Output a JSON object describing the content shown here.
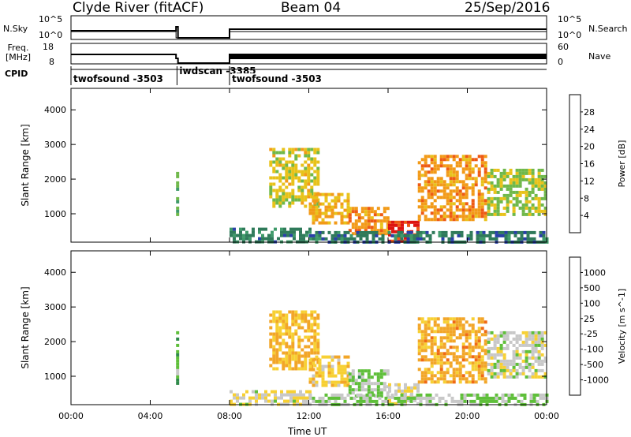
{
  "header": {
    "station": "Clyde River (fitACF)",
    "beam": "Beam 04",
    "date": "25/Sep/2016"
  },
  "strip_nsky": {
    "label": "N.Sky",
    "tick_top": "10^5",
    "tick_bottom": "10^0",
    "right_label": "N.Search",
    "right_tick_top": "10^5",
    "right_tick_bottom": "10^0"
  },
  "strip_freq": {
    "label": "Freq. [MHz]",
    "tick_top": "18",
    "tick_bottom": "8",
    "right_label": "Nave",
    "right_tick_top": "60",
    "right_tick_bottom": "0"
  },
  "cpid": {
    "label": "CPID",
    "segments": [
      {
        "name": "twofsound -3503",
        "start": 0.0,
        "end": 5.35
      },
      {
        "name": "iwdscan -3385",
        "start": 5.35,
        "end": 8.0
      },
      {
        "name": "twofsound -3503",
        "start": 8.0,
        "end": 24.0
      }
    ]
  },
  "axes": {
    "xlabel": "Time UT",
    "ylabel": "Slant Range [km]",
    "xticks": [
      "00:00",
      "04:00",
      "08:00",
      "12:00",
      "16:00",
      "20:00",
      "00:00"
    ]
  },
  "colors": {
    "power": [
      "#0b14d0",
      "#2a3fa8",
      "#2f7a5a",
      "#3f9a6a",
      "#6fb84a",
      "#e8c21a",
      "#f29a18",
      "#ee5a14",
      "#dd1410"
    ],
    "velocity": [
      "#e81818",
      "#f06a14",
      "#f2a628",
      "#f7d034",
      "#c8c8c8",
      "#5fbf3a",
      "#2f8a4a",
      "#2a5aa0",
      "#1428b8"
    ]
  },
  "chart_data": [
    {
      "type": "heatmap",
      "title": "",
      "xlabel": "Time UT",
      "ylabel": "Slant Range [km]",
      "xlim": [
        0,
        24
      ],
      "ylim": [
        180,
        4620
      ],
      "yticks": [
        1000,
        2000,
        3000,
        4000
      ],
      "colorbar": {
        "label": "Power [dB]",
        "ticks": [
          "4",
          "8",
          "12",
          "16",
          "20",
          "24",
          "28"
        ],
        "range": [
          0,
          30
        ]
      },
      "regions": [
        {
          "t0": 5.3,
          "t1": 5.45,
          "r0": 800,
          "r1": 2300,
          "value": 14
        },
        {
          "t0": 8.0,
          "t1": 12.0,
          "r0": 180,
          "r1": 600,
          "value": 9
        },
        {
          "t0": 10.0,
          "t1": 12.5,
          "r0": 1200,
          "r1": 2900,
          "value": 18
        },
        {
          "t0": 12.0,
          "t1": 14.0,
          "r0": 700,
          "r1": 1600,
          "value": 20
        },
        {
          "t0": 14.0,
          "t1": 16.0,
          "r0": 400,
          "r1": 1200,
          "value": 22
        },
        {
          "t0": 16.0,
          "t1": 17.5,
          "r0": 250,
          "r1": 800,
          "value": 28
        },
        {
          "t0": 17.5,
          "t1": 21.0,
          "r0": 800,
          "r1": 2700,
          "value": 22
        },
        {
          "t0": 21.0,
          "t1": 24.0,
          "r0": 1000,
          "r1": 2300,
          "value": 16
        },
        {
          "t0": 12.0,
          "t1": 24.0,
          "r0": 180,
          "r1": 500,
          "value": 8
        }
      ]
    },
    {
      "type": "heatmap",
      "title": "",
      "xlabel": "Time UT",
      "ylabel": "Slant Range [km]",
      "xlim": [
        0,
        24
      ],
      "ylim": [
        180,
        4620
      ],
      "yticks": [
        1000,
        2000,
        3000,
        4000
      ],
      "colorbar": {
        "label": "Velocity [m s^-1]",
        "ticks": [
          "-1000",
          "-500",
          "-100",
          "-25",
          "25",
          "100",
          "500",
          "1000"
        ],
        "range": [
          -1200,
          1200
        ]
      },
      "regions": [
        {
          "t0": 5.3,
          "t1": 5.45,
          "r0": 800,
          "r1": 2300,
          "value": 300
        },
        {
          "t0": 8.0,
          "t1": 12.0,
          "r0": 180,
          "r1": 600,
          "value": -60
        },
        {
          "t0": 10.0,
          "t1": 12.5,
          "r0": 1200,
          "r1": 2900,
          "value": -400
        },
        {
          "t0": 12.0,
          "t1": 14.0,
          "r0": 700,
          "r1": 1600,
          "value": -300
        },
        {
          "t0": 14.0,
          "t1": 16.0,
          "r0": 400,
          "r1": 1200,
          "value": 200
        },
        {
          "t0": 16.0,
          "t1": 17.5,
          "r0": 250,
          "r1": 800,
          "value": -150
        },
        {
          "t0": 17.5,
          "t1": 21.0,
          "r0": 800,
          "r1": 2700,
          "value": -500
        },
        {
          "t0": 21.0,
          "t1": 24.0,
          "r0": 1000,
          "r1": 2300,
          "value": 0
        },
        {
          "t0": 12.0,
          "t1": 24.0,
          "r0": 180,
          "r1": 500,
          "value": 150
        }
      ]
    }
  ]
}
